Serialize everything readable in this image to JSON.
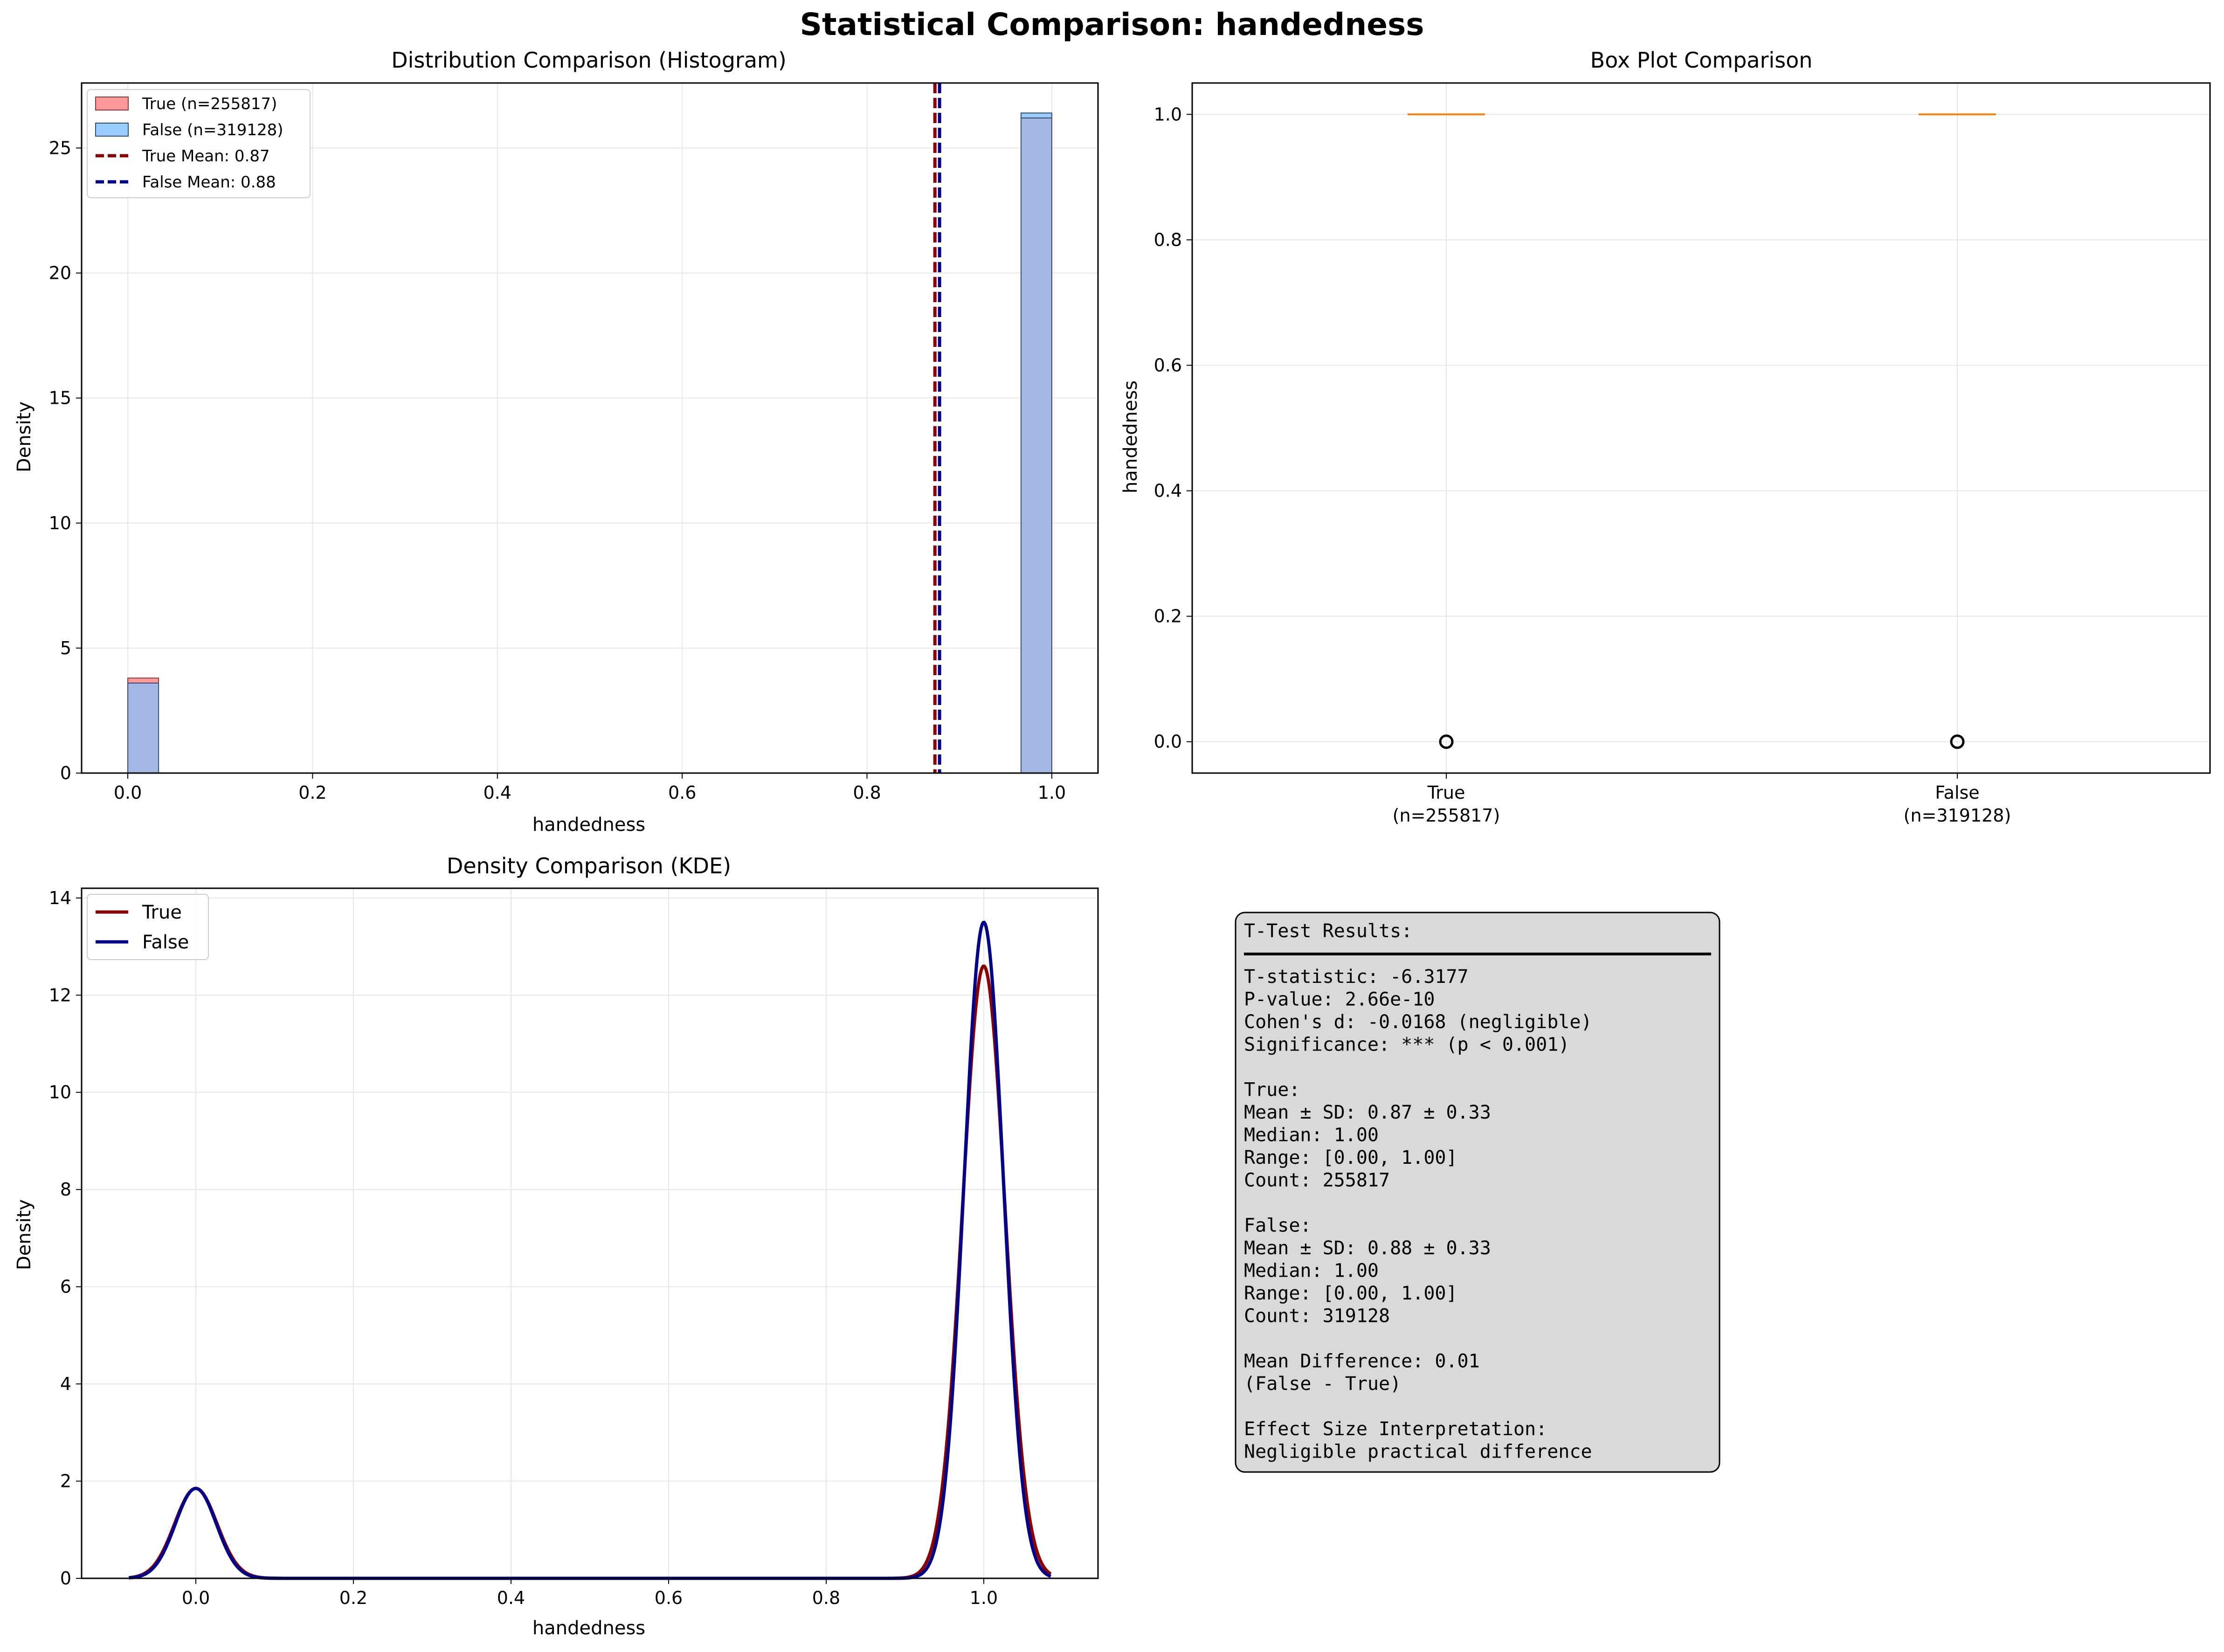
{
  "figure": {
    "suptitle": "Statistical Comparison: handedness"
  },
  "colors": {
    "true_fill": "#ff9999",
    "false_fill": "#99ccff",
    "overlap_fill": "#a3b8e6",
    "true_line": "#8b0000",
    "false_line": "#00008b",
    "median": "#ff7f0e",
    "grid": "#e6e6e6",
    "stats_bg": "#d9d9d9"
  },
  "chart_data": [
    {
      "id": "histogram",
      "type": "bar",
      "title": "Distribution Comparison (Histogram)",
      "xlabel": "handedness",
      "ylabel": "Density",
      "xlim": [
        -0.05,
        1.05
      ],
      "ylim": [
        0,
        27.6
      ],
      "xticks": [
        0.0,
        0.2,
        0.4,
        0.6,
        0.8,
        1.0
      ],
      "xtick_labels": [
        "0.0",
        "0.2",
        "0.4",
        "0.6",
        "0.8",
        "1.0"
      ],
      "yticks": [
        0,
        5,
        10,
        15,
        20,
        25
      ],
      "ytick_labels": [
        "0",
        "5",
        "10",
        "15",
        "20",
        "25"
      ],
      "grid": true,
      "legend_position": "top-left",
      "bin_width": 0.0333,
      "series": [
        {
          "name": "True (n=255817)",
          "bins": [
            {
              "x": 0.0,
              "density": 3.8
            },
            {
              "x": 0.9667,
              "density": 26.2
            }
          ]
        },
        {
          "name": "False (n=319128)",
          "bins": [
            {
              "x": 0.0,
              "density": 3.6
            },
            {
              "x": 0.9667,
              "density": 26.4
            }
          ]
        }
      ],
      "mean_lines": [
        {
          "name": "True Mean: 0.87",
          "x": 0.8735
        },
        {
          "name": "False Mean: 0.88",
          "x": 0.8785
        }
      ]
    },
    {
      "id": "boxplot",
      "type": "box",
      "title": "Box Plot Comparison",
      "ylabel": "handedness",
      "ylim": [
        -0.05,
        1.05
      ],
      "yticks": [
        0.0,
        0.2,
        0.4,
        0.6,
        0.8,
        1.0
      ],
      "ytick_labels": [
        "0.0",
        "0.2",
        "0.4",
        "0.6",
        "0.8",
        "1.0"
      ],
      "grid": true,
      "categories": [
        {
          "label": "True",
          "sub": "(n=255817)",
          "q1": 1.0,
          "median": 1.0,
          "q3": 1.0,
          "whisker_low": 1.0,
          "whisker_high": 1.0,
          "outliers": [
            0.0
          ]
        },
        {
          "label": "False",
          "sub": "(n=319128)",
          "q1": 1.0,
          "median": 1.0,
          "q3": 1.0,
          "whisker_low": 1.0,
          "whisker_high": 1.0,
          "outliers": [
            0.0
          ]
        }
      ]
    },
    {
      "id": "kde",
      "type": "line",
      "title": "Density Comparison (KDE)",
      "xlabel": "handedness",
      "ylabel": "Density",
      "xlim": [
        -0.145,
        1.145
      ],
      "ylim": [
        0,
        14.2
      ],
      "xticks": [
        0.0,
        0.2,
        0.4,
        0.6,
        0.8,
        1.0
      ],
      "xtick_labels": [
        "0.0",
        "0.2",
        "0.4",
        "0.6",
        "0.8",
        "1.0"
      ],
      "yticks": [
        0,
        2,
        4,
        6,
        8,
        10,
        12,
        14
      ],
      "ytick_labels": [
        "0",
        "2",
        "4",
        "6",
        "8",
        "10",
        "12",
        "14"
      ],
      "grid": true,
      "legend_position": "top-left",
      "x_range": [
        -0.085,
        1.085
      ],
      "series": [
        {
          "name": "True",
          "peaks": [
            {
              "mu": 0.0,
              "height": 1.85,
              "sigma": 0.027
            },
            {
              "mu": 1.0,
              "height": 12.6,
              "sigma": 0.027
            }
          ]
        },
        {
          "name": "False",
          "peaks": [
            {
              "mu": 0.0,
              "height": 1.85,
              "sigma": 0.026
            },
            {
              "mu": 1.0,
              "height": 13.5,
              "sigma": 0.025
            }
          ]
        }
      ]
    }
  ],
  "stats": {
    "header": "T-Test Results:",
    "lines": [
      "T-statistic: -6.3177",
      "P-value: 2.66e-10",
      "Cohen's d: -0.0168 (negligible)",
      "Significance: *** (p < 0.001)",
      "",
      "True:",
      "  Mean ± SD: 0.87 ± 0.33",
      "  Median: 1.00",
      "  Range: [0.00, 1.00]",
      "  Count: 255817",
      "",
      "False:",
      "  Mean ± SD: 0.88 ± 0.33",
      "  Median: 1.00",
      "  Range: [0.00, 1.00]",
      "  Count: 319128",
      "",
      "Mean Difference: 0.01",
      "(False - True)",
      "",
      "Effect Size Interpretation:",
      "Negligible practical difference"
    ]
  }
}
